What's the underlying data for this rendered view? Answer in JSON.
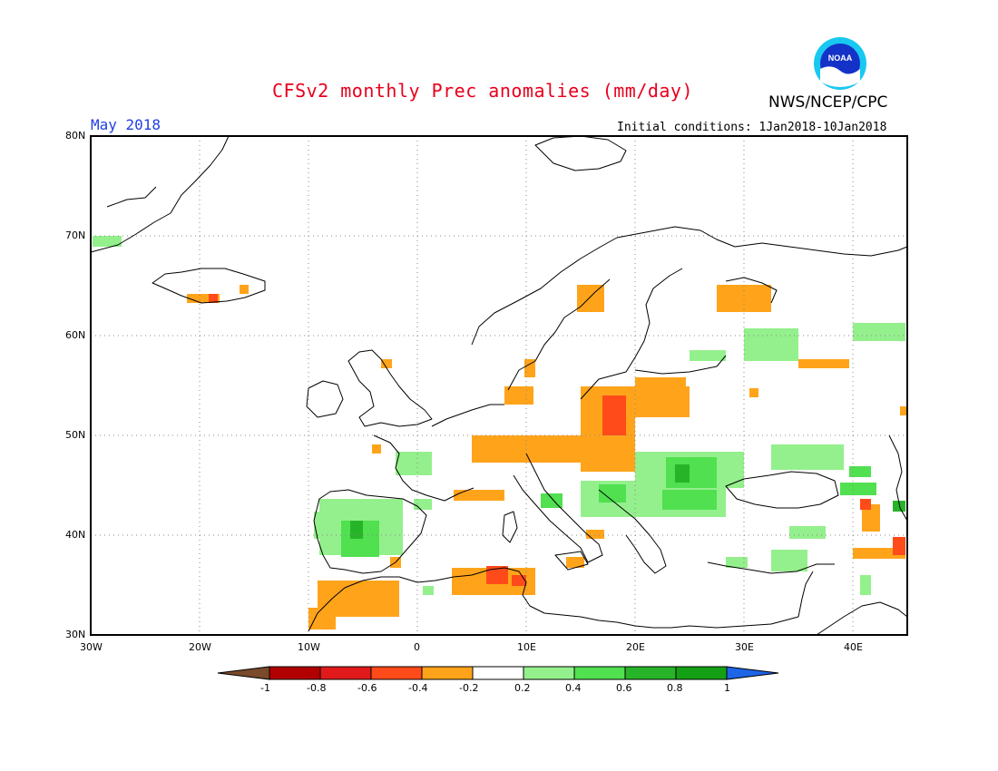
{
  "header": {
    "title": "CFSv2 monthly Prec anomalies (mm/day)",
    "period": "May 2018",
    "initial_conditions": "Initial conditions: 1Jan2018-10Jan2018",
    "agency": "NWS/NCEP/CPC",
    "logo_text": "NOAA"
  },
  "map": {
    "lat_labels": [
      "80N",
      "70N",
      "60N",
      "50N",
      "40N",
      "30N"
    ],
    "lon_labels": [
      "30W",
      "20W",
      "10W",
      "0",
      "10E",
      "20E",
      "30E",
      "40E"
    ],
    "gridlines": true,
    "colors": {
      "frame": "#000000",
      "coast": "#000000",
      "grid": "#888888"
    }
  },
  "colorbar": {
    "labels": [
      "-1",
      "-0.8",
      "-0.6",
      "-0.4",
      "-0.2",
      "0.2",
      "0.4",
      "0.6",
      "0.8",
      "1"
    ],
    "colors": [
      "#7a4b2a",
      "#b20000",
      "#e01a1a",
      "#ff4a1a",
      "#ffa41a",
      "#ffffff",
      "#94f08c",
      "#50e050",
      "#28b428",
      "#14a014",
      "#1e64e6"
    ]
  }
}
